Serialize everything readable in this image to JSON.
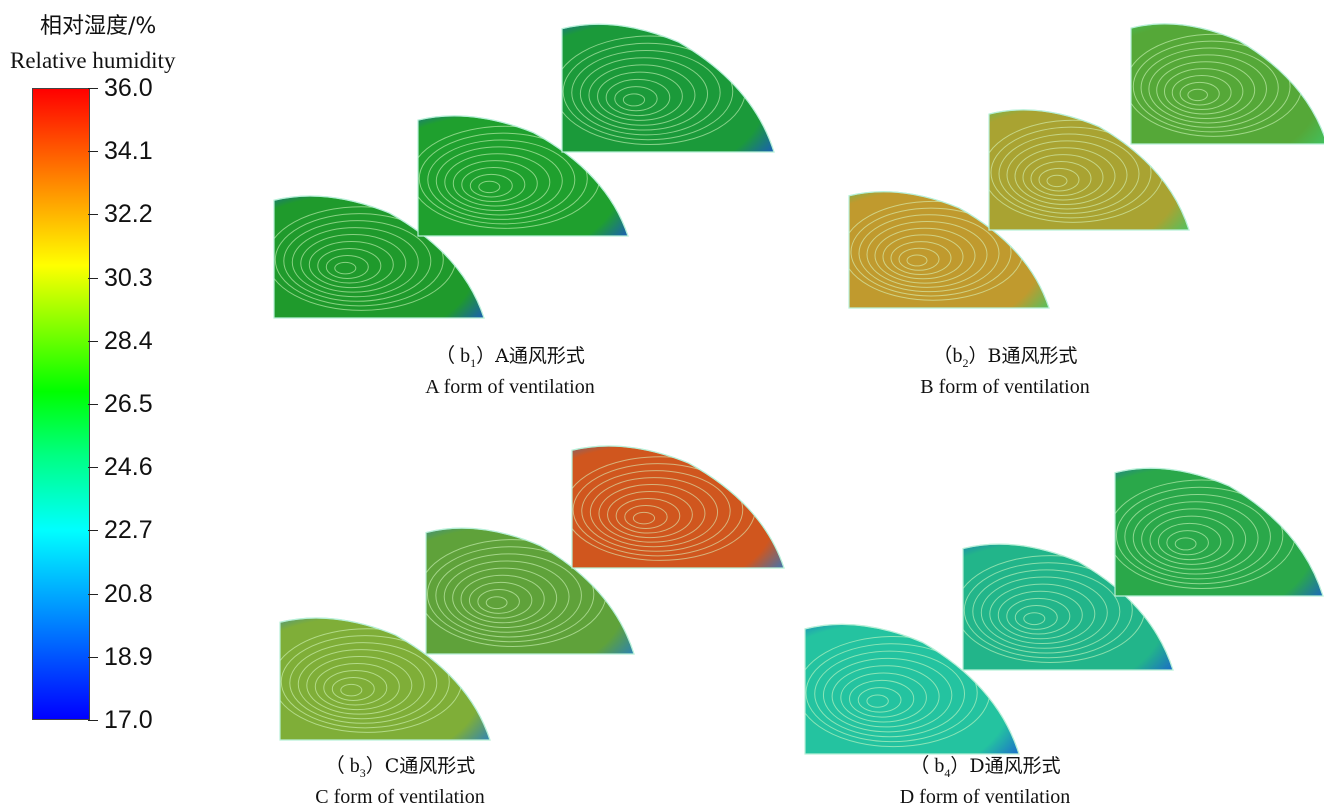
{
  "legend": {
    "title_cn": "相对湿度/%",
    "title_en": "Relative humidity",
    "ticks": [
      "36.0",
      "34.1",
      "32.2",
      "30.3",
      "28.4",
      "26.5",
      "24.6",
      "22.7",
      "20.8",
      "18.9",
      "17.0"
    ],
    "max": 36.0,
    "min": 17.0
  },
  "panels": [
    {
      "id": "b1",
      "label_prefix": "（ b",
      "label_sub": "1",
      "label_suffix": "）A通风形式",
      "label_en": "A form of ventilation",
      "colors": [
        "#1f9a2c",
        "#1fa02e",
        "#1b9a3a"
      ],
      "edge_color": "#1a4fd6"
    },
    {
      "id": "b2",
      "label_prefix": "（b",
      "label_sub": "2",
      "label_suffix": "）B通风形式",
      "label_en": "B form of ventilation",
      "colors": [
        "#c09a2e",
        "#a9a332",
        "#55a838"
      ],
      "edge_color": "#3cc86a"
    },
    {
      "id": "b3",
      "label_prefix": "（ b",
      "label_sub": "3",
      "label_suffix": "）C通风形式",
      "label_en": "C form of ventilation",
      "colors": [
        "#7fae38",
        "#5fa23a",
        "#d0561e"
      ],
      "edge_color": "#1e7ad2"
    },
    {
      "id": "b4",
      "label_prefix": "（ b",
      "label_sub": "4",
      "label_suffix": "）D通风形式",
      "label_en": "D form of ventilation",
      "colors": [
        "#24c3a0",
        "#22b58a",
        "#2aa84a"
      ],
      "edge_color": "#1a5ad6"
    }
  ]
}
